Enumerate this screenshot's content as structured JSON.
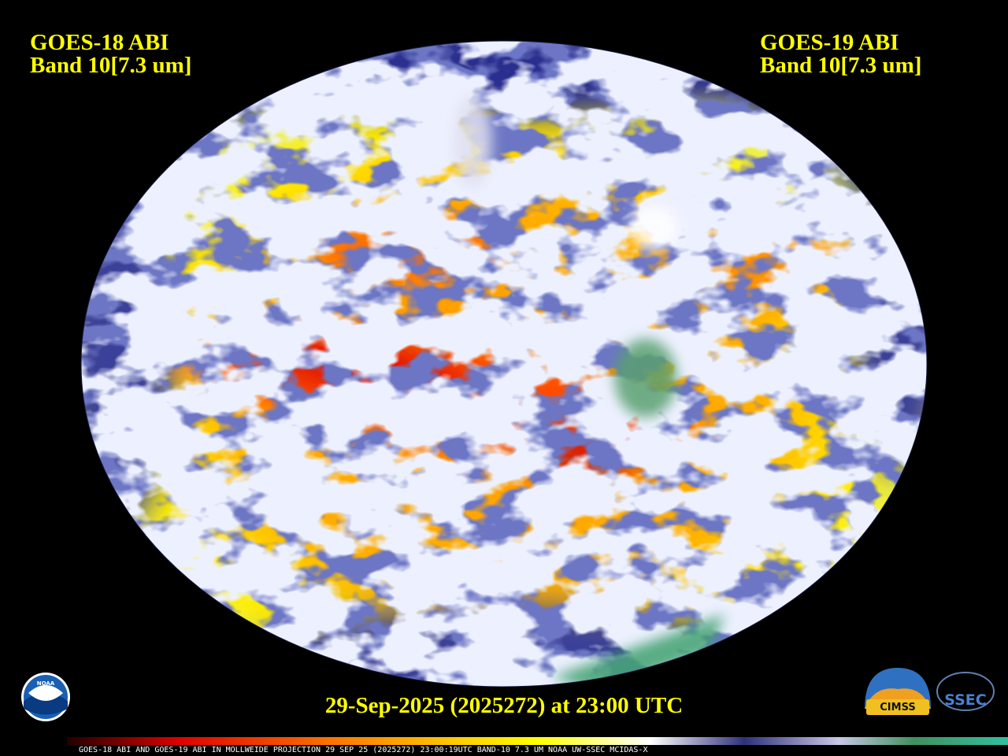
{
  "header": {
    "left": {
      "title": "GOES-18 ABI",
      "band": "Band 10[7.3 um]"
    },
    "right": {
      "title": "GOES-19 ABI",
      "band": "Band 10[7.3 um]"
    }
  },
  "timestamp": "29-Sep-2025 (2025272) at 23:00 UTC",
  "logos": {
    "noaa": "NOAA",
    "cimss": "CIMSS",
    "ssec": "SSEC"
  },
  "footer": "GOES-18 ABI AND GOES-19 ABI IN MOLLWEIDE PROJECTION 29 SEP 25 (2025272) 23:00:19UTC BAND-10 7.3 UM NOAA UW-SSEC MCIDAS-X"
}
